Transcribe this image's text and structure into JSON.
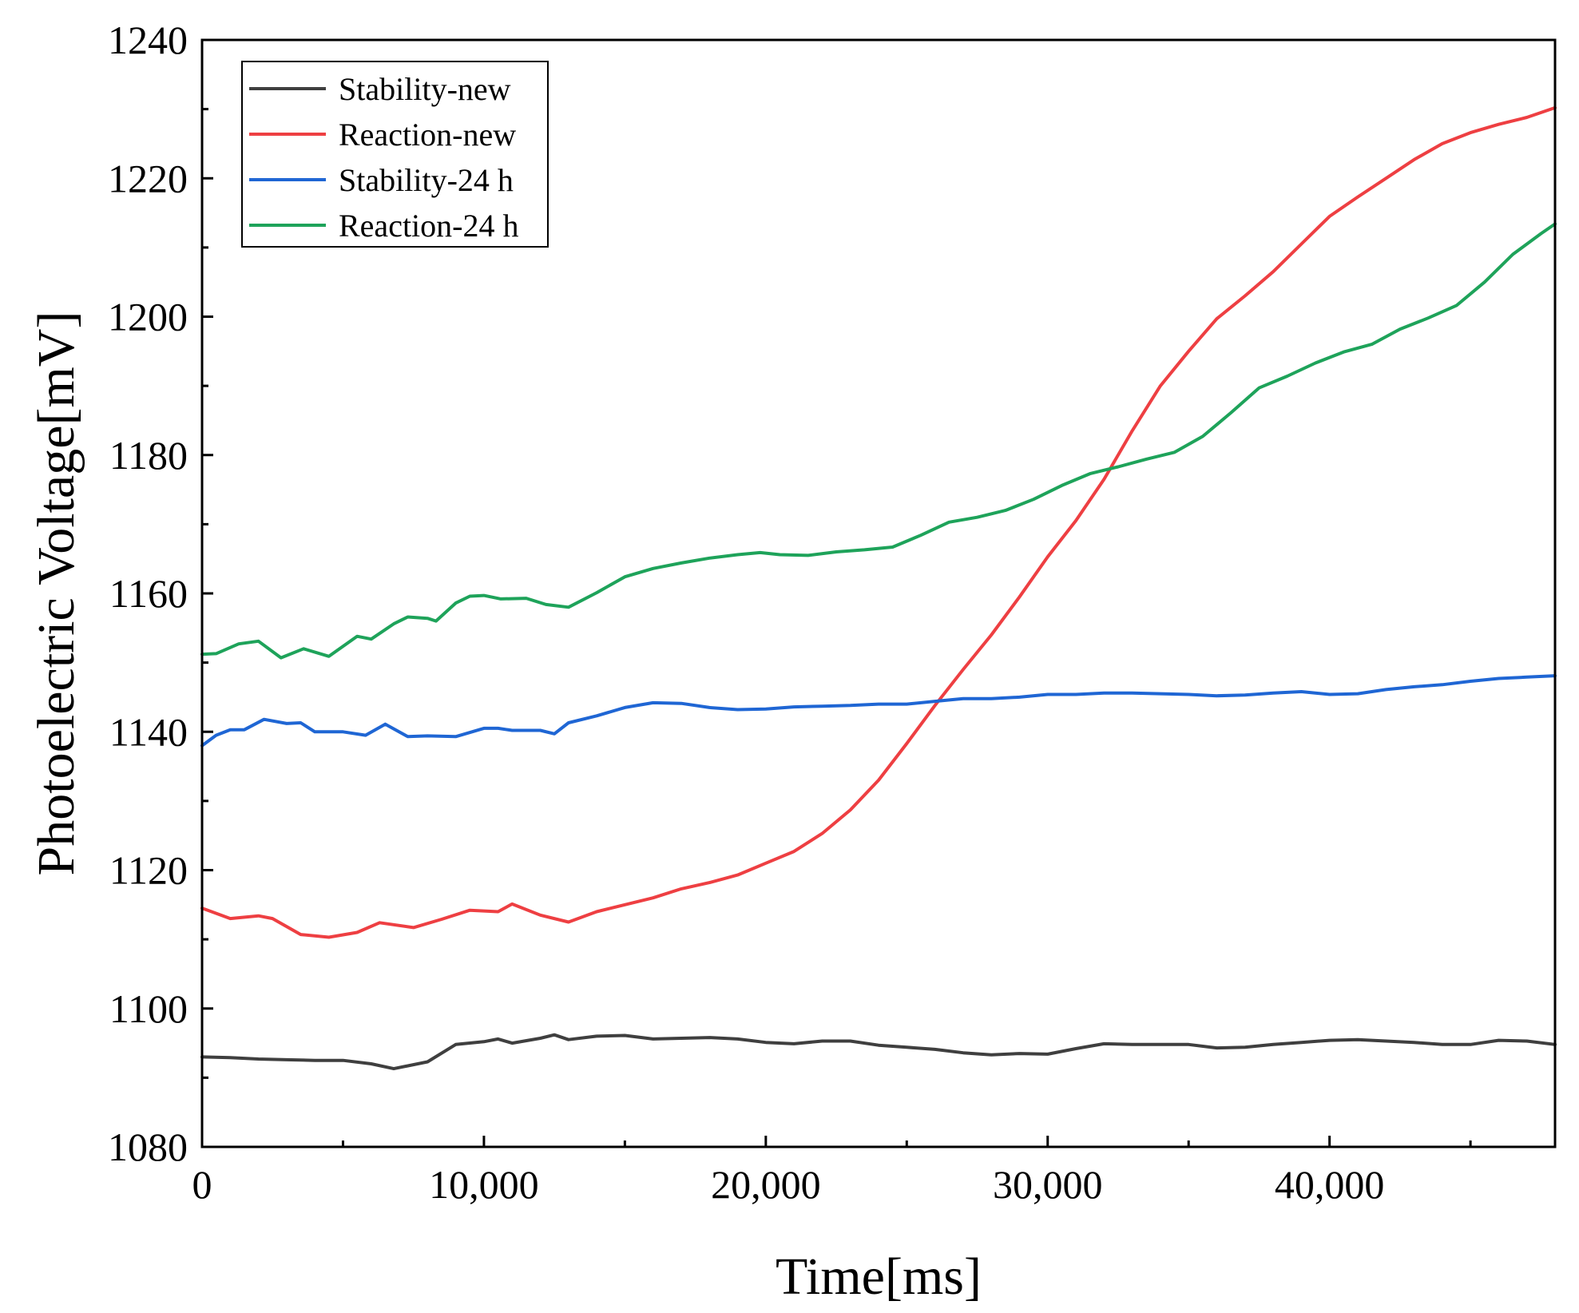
{
  "chart_data": {
    "type": "line",
    "title": "",
    "xlabel": "Time[ms]",
    "ylabel": "Photoelectric Voltage[mV]",
    "xlim": [
      0,
      48000
    ],
    "ylim": [
      1080,
      1240
    ],
    "xticks": [
      0,
      10000,
      20000,
      30000,
      40000
    ],
    "xtick_labels": [
      "0",
      "10,000",
      "20,000",
      "30,000",
      "40,000"
    ],
    "yticks": [
      1080,
      1100,
      1120,
      1140,
      1160,
      1180,
      1200,
      1220,
      1240
    ],
    "ytick_labels": [
      "1080",
      "1100",
      "1120",
      "1140",
      "1160",
      "1180",
      "1200",
      "1220",
      "1240"
    ],
    "grid": false,
    "legend_position": "top-left",
    "series": [
      {
        "name": "Stability-new",
        "color": "#3f3f3f",
        "x": [
          0,
          1000,
          2000,
          3000,
          4000,
          5000,
          6000,
          6800,
          8000,
          9000,
          10000,
          10500,
          11000,
          12000,
          12500,
          13000,
          14000,
          15000,
          16000,
          17000,
          18000,
          19000,
          20000,
          21000,
          22000,
          23000,
          24000,
          25000,
          26000,
          27000,
          28000,
          29000,
          30000,
          31000,
          32000,
          33000,
          34000,
          35000,
          36000,
          37000,
          38000,
          39000,
          40000,
          41000,
          42000,
          43000,
          44000,
          45000,
          46000,
          47000,
          48000
        ],
        "values": [
          1093.0,
          1092.9,
          1092.7,
          1092.6,
          1092.5,
          1092.5,
          1092.0,
          1091.3,
          1092.3,
          1094.8,
          1095.2,
          1095.6,
          1095.0,
          1095.7,
          1096.2,
          1095.5,
          1096.0,
          1096.1,
          1095.6,
          1095.7,
          1095.8,
          1095.6,
          1095.1,
          1094.9,
          1095.3,
          1095.3,
          1094.7,
          1094.4,
          1094.1,
          1093.6,
          1093.3,
          1093.5,
          1093.4,
          1094.2,
          1094.9,
          1094.8,
          1094.8,
          1094.8,
          1094.3,
          1094.4,
          1094.8,
          1095.1,
          1095.4,
          1095.5,
          1095.3,
          1095.1,
          1094.8,
          1094.8,
          1095.4,
          1095.3,
          1094.8
        ]
      },
      {
        "name": "Reaction-new",
        "color": "#ee3f42",
        "x": [
          0,
          1000,
          2000,
          2500,
          3500,
          4500,
          5500,
          6300,
          7500,
          8500,
          9500,
          10500,
          11000,
          12000,
          13000,
          14000,
          15000,
          16000,
          17000,
          18000,
          19000,
          20000,
          21000,
          22000,
          23000,
          24000,
          25000,
          26000,
          27000,
          28000,
          29000,
          30000,
          31000,
          32000,
          33000,
          34000,
          35000,
          36000,
          37000,
          38000,
          39000,
          40000,
          41000,
          42000,
          43000,
          44000,
          45000,
          46000,
          47000,
          48000
        ],
        "values": [
          1114.5,
          1113.0,
          1113.4,
          1113.0,
          1110.7,
          1110.3,
          1111.0,
          1112.4,
          1111.7,
          1112.9,
          1114.2,
          1114.0,
          1115.1,
          1113.5,
          1112.5,
          1114.0,
          1115.0,
          1116.0,
          1117.3,
          1118.2,
          1119.3,
          1121.0,
          1122.7,
          1125.3,
          1128.7,
          1133.0,
          1138.3,
          1143.8,
          1149.0,
          1154.0,
          1159.5,
          1165.3,
          1170.5,
          1176.5,
          1183.5,
          1190.0,
          1195.0,
          1199.7,
          1203.0,
          1206.5,
          1210.5,
          1214.5,
          1217.3,
          1220.0,
          1222.7,
          1225.0,
          1226.6,
          1227.8,
          1228.8,
          1230.2
        ]
      },
      {
        "name": "Stability-24 h",
        "color": "#1f66d4",
        "x": [
          0,
          500,
          1000,
          1500,
          2200,
          3000,
          3500,
          4000,
          5000,
          5800,
          6500,
          7300,
          8000,
          9000,
          10000,
          10500,
          11000,
          12000,
          12500,
          13000,
          14000,
          15000,
          16000,
          17000,
          18000,
          19000,
          20000,
          21000,
          22000,
          23000,
          24000,
          25000,
          26000,
          27000,
          28000,
          29000,
          30000,
          31000,
          32000,
          33000,
          34000,
          35000,
          36000,
          37000,
          38000,
          39000,
          40000,
          41000,
          42000,
          43000,
          44000,
          45000,
          46000,
          47000,
          48000
        ],
        "values": [
          1138.0,
          1139.5,
          1140.3,
          1140.3,
          1141.8,
          1141.2,
          1141.3,
          1140.0,
          1140.0,
          1139.5,
          1141.1,
          1139.3,
          1139.4,
          1139.3,
          1140.5,
          1140.5,
          1140.2,
          1140.2,
          1139.7,
          1141.3,
          1142.3,
          1143.5,
          1144.2,
          1144.1,
          1143.5,
          1143.2,
          1143.3,
          1143.6,
          1143.7,
          1143.8,
          1144.0,
          1144.0,
          1144.4,
          1144.8,
          1144.8,
          1145.0,
          1145.4,
          1145.4,
          1145.6,
          1145.6,
          1145.5,
          1145.4,
          1145.2,
          1145.3,
          1145.6,
          1145.8,
          1145.4,
          1145.5,
          1146.1,
          1146.5,
          1146.8,
          1147.3,
          1147.7,
          1147.9,
          1148.1
        ]
      },
      {
        "name": "Reaction-24 h",
        "color": "#1ea35a",
        "x": [
          0,
          500,
          1300,
          2000,
          2800,
          3600,
          4500,
          5500,
          6000,
          6800,
          7300,
          8000,
          8300,
          9000,
          9500,
          10000,
          10600,
          11500,
          12200,
          13000,
          14000,
          15000,
          16000,
          17000,
          18000,
          19000,
          19800,
          20500,
          21500,
          22500,
          23500,
          24500,
          25500,
          26500,
          27500,
          28500,
          29500,
          30500,
          31500,
          32500,
          33500,
          34500,
          35500,
          36500,
          37500,
          38500,
          39500,
          40500,
          41500,
          42500,
          43500,
          44500,
          45500,
          46500,
          47500,
          48000
        ],
        "values": [
          1151.2,
          1151.3,
          1152.7,
          1153.1,
          1150.7,
          1152.0,
          1150.9,
          1153.8,
          1153.4,
          1155.6,
          1156.6,
          1156.4,
          1156.0,
          1158.6,
          1159.6,
          1159.7,
          1159.2,
          1159.3,
          1158.4,
          1158.0,
          1160.1,
          1162.4,
          1163.6,
          1164.4,
          1165.1,
          1165.6,
          1165.9,
          1165.6,
          1165.5,
          1166.0,
          1166.3,
          1166.7,
          1168.4,
          1170.3,
          1171.0,
          1172.0,
          1173.6,
          1175.6,
          1177.3,
          1178.3,
          1179.4,
          1180.4,
          1182.7,
          1186.1,
          1189.7,
          1191.4,
          1193.3,
          1194.9,
          1196.0,
          1198.2,
          1199.8,
          1201.6,
          1205.0,
          1209.0,
          1212.0,
          1213.4
        ]
      }
    ]
  }
}
